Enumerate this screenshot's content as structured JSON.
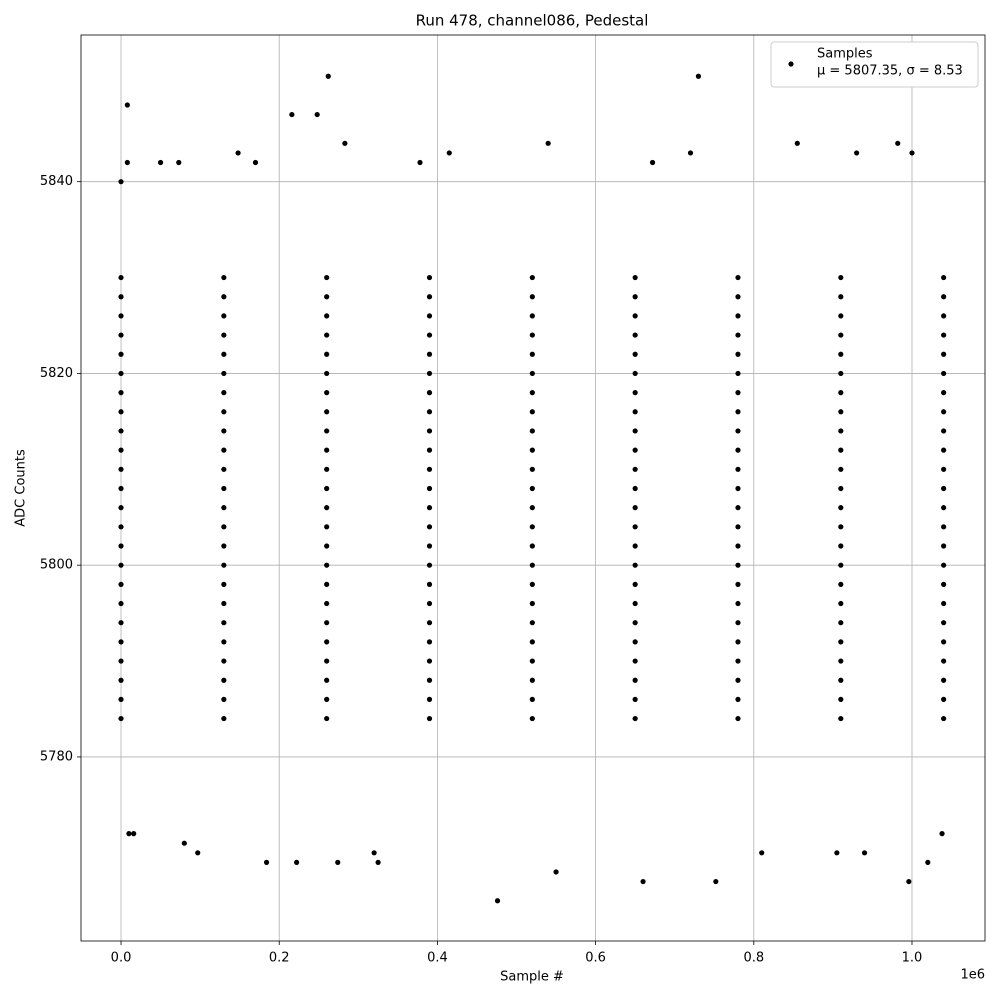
{
  "chart_data": {
    "type": "scatter",
    "title": "Run 478, channel086, Pedestal",
    "x_label": "Sample #",
    "y_label": "ADC Counts",
    "x_offset_label": "1e6",
    "xlim": [
      -50600,
      1092300
    ],
    "ylim": [
      5760.8,
      5855.3
    ],
    "xticks": [
      {
        "value": 0,
        "label": "0.0"
      },
      {
        "value": 200000,
        "label": "0.2"
      },
      {
        "value": 400000,
        "label": "0.4"
      },
      {
        "value": 600000,
        "label": "0.6"
      },
      {
        "value": 800000,
        "label": "0.8"
      },
      {
        "value": 1000000,
        "label": "1.0"
      }
    ],
    "yticks": [
      5780,
      5800,
      5820,
      5840
    ],
    "grid": true,
    "legend": "upper right",
    "annotation": "μ = 5807.35, σ = 8.53",
    "series": [
      {
        "name": "Samples",
        "color": "#000000",
        "x": [
          0,
          130000,
          260000,
          390000,
          520000,
          650000,
          780000,
          910000,
          1040000,
          0,
          130000,
          260000,
          390000,
          520000,
          650000,
          780000,
          910000,
          1040000,
          0,
          130000,
          260000,
          390000,
          520000,
          650000,
          780000,
          910000,
          1040000,
          0,
          130000,
          260000,
          390000,
          520000,
          650000,
          780000,
          910000,
          1040000,
          0,
          130000,
          260000,
          390000,
          520000,
          650000,
          780000,
          910000,
          1040000,
          0,
          130000,
          260000,
          390000,
          520000,
          650000,
          780000,
          910000,
          1040000,
          0,
          130000,
          260000,
          390000,
          520000,
          650000,
          780000,
          910000,
          1040000,
          0,
          130000,
          260000,
          390000,
          520000,
          650000,
          780000,
          910000,
          1040000,
          0,
          130000,
          260000,
          390000,
          520000,
          650000,
          780000,
          910000,
          1040000,
          0,
          130000,
          260000,
          390000,
          520000,
          650000,
          780000,
          910000,
          1040000,
          0,
          130000,
          260000,
          390000,
          520000,
          650000,
          780000,
          910000,
          1040000,
          0,
          130000,
          260000,
          390000,
          520000,
          650000,
          780000,
          910000,
          1040000,
          0,
          130000,
          260000,
          390000,
          520000,
          650000,
          780000,
          910000,
          1040000,
          0,
          130000,
          260000,
          390000,
          520000,
          650000,
          780000,
          910000,
          1040000,
          0,
          130000,
          260000,
          390000,
          520000,
          650000,
          780000,
          910000,
          1040000,
          0,
          130000,
          260000,
          390000,
          520000,
          650000,
          780000,
          910000,
          1040000,
          0,
          130000,
          260000,
          390000,
          520000,
          650000,
          780000,
          910000,
          1040000,
          0,
          130000,
          260000,
          390000,
          520000,
          650000,
          780000,
          910000,
          1040000,
          0,
          130000,
          260000,
          390000,
          520000,
          650000,
          780000,
          910000,
          1040000,
          0,
          130000,
          260000,
          390000,
          520000,
          650000,
          780000,
          910000,
          1040000,
          0,
          130000,
          260000,
          390000,
          520000,
          650000,
          780000,
          910000,
          1040000,
          0,
          130000,
          260000,
          390000,
          520000,
          650000,
          780000,
          910000,
          1040000,
          0,
          130000,
          260000,
          390000,
          520000,
          650000,
          780000,
          910000,
          1040000,
          0,
          130000,
          260000,
          390000,
          520000,
          650000,
          780000,
          910000,
          1040000,
          8000,
          8000,
          10000,
          16000,
          216000,
          248000,
          262000,
          283000,
          476000,
          540000,
          550000,
          730000,
          752000,
          996000,
          1000000,
          660000,
          80000,
          97000,
          184000,
          222000,
          274000,
          320000,
          325000,
          855000,
          930000,
          982000,
          1020000,
          1038000,
          810000,
          905000,
          940000,
          415000,
          148000,
          0,
          50000,
          73000,
          170000,
          378000,
          672000,
          720000
        ],
        "y": [
          5784,
          5784,
          5784,
          5784,
          5784,
          5784,
          5784,
          5784,
          5784,
          5786,
          5786,
          5786,
          5786,
          5786,
          5786,
          5786,
          5786,
          5786,
          5788,
          5788,
          5788,
          5788,
          5788,
          5788,
          5788,
          5788,
          5788,
          5790,
          5790,
          5790,
          5790,
          5790,
          5790,
          5790,
          5790,
          5790,
          5792,
          5792,
          5792,
          5792,
          5792,
          5792,
          5792,
          5792,
          5792,
          5794,
          5794,
          5794,
          5794,
          5794,
          5794,
          5794,
          5794,
          5794,
          5796,
          5796,
          5796,
          5796,
          5796,
          5796,
          5796,
          5796,
          5796,
          5798,
          5798,
          5798,
          5798,
          5798,
          5798,
          5798,
          5798,
          5798,
          5800,
          5800,
          5800,
          5800,
          5800,
          5800,
          5800,
          5800,
          5800,
          5802,
          5802,
          5802,
          5802,
          5802,
          5802,
          5802,
          5802,
          5802,
          5804,
          5804,
          5804,
          5804,
          5804,
          5804,
          5804,
          5804,
          5804,
          5806,
          5806,
          5806,
          5806,
          5806,
          5806,
          5806,
          5806,
          5806,
          5808,
          5808,
          5808,
          5808,
          5808,
          5808,
          5808,
          5808,
          5808,
          5810,
          5810,
          5810,
          5810,
          5810,
          5810,
          5810,
          5810,
          5810,
          5812,
          5812,
          5812,
          5812,
          5812,
          5812,
          5812,
          5812,
          5812,
          5814,
          5814,
          5814,
          5814,
          5814,
          5814,
          5814,
          5814,
          5814,
          5816,
          5816,
          5816,
          5816,
          5816,
          5816,
          5816,
          5816,
          5816,
          5818,
          5818,
          5818,
          5818,
          5818,
          5818,
          5818,
          5818,
          5818,
          5820,
          5820,
          5820,
          5820,
          5820,
          5820,
          5820,
          5820,
          5820,
          5822,
          5822,
          5822,
          5822,
          5822,
          5822,
          5822,
          5822,
          5822,
          5824,
          5824,
          5824,
          5824,
          5824,
          5824,
          5824,
          5824,
          5824,
          5826,
          5826,
          5826,
          5826,
          5826,
          5826,
          5826,
          5826,
          5826,
          5828,
          5828,
          5828,
          5828,
          5828,
          5828,
          5828,
          5828,
          5828,
          5830,
          5830,
          5830,
          5830,
          5830,
          5830,
          5830,
          5830,
          5830,
          5848,
          5842,
          5772,
          5772,
          5847,
          5847,
          5851,
          5844,
          5765,
          5844,
          5768,
          5851,
          5767,
          5767,
          5843,
          5767,
          5771,
          5770,
          5769,
          5769,
          5769,
          5770,
          5769,
          5844,
          5843,
          5844,
          5769,
          5772,
          5770,
          5770,
          5770,
          5843,
          5843,
          5840,
          5842,
          5842,
          5842,
          5842,
          5842,
          5843
        ]
      }
    ]
  }
}
